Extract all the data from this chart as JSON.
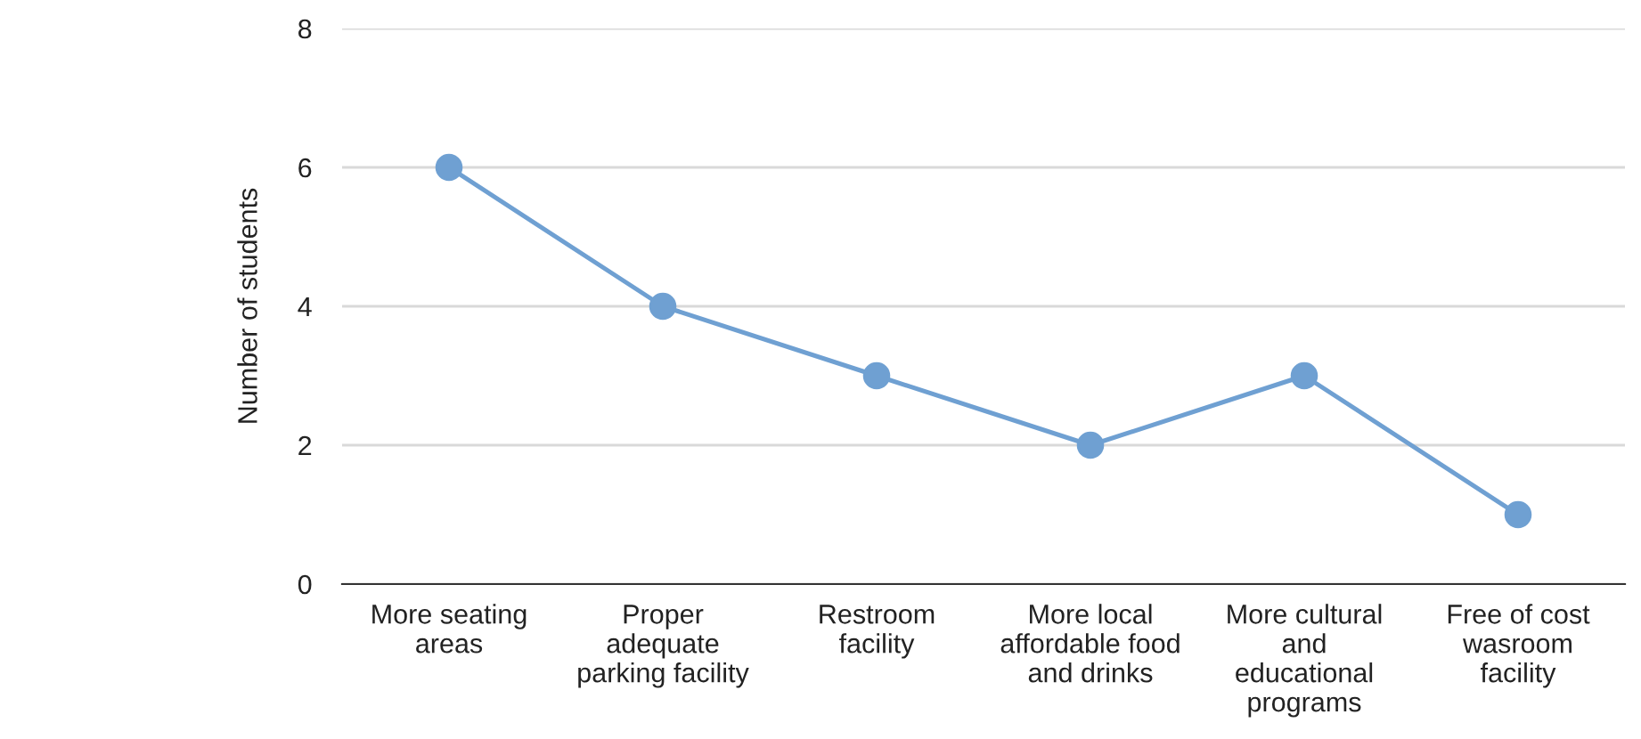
{
  "chart_data": {
    "type": "line",
    "ylabel": "Number of students",
    "categories": [
      "More seating\nareas",
      "Proper\nadequate\nparking facility",
      "Restroom\nfacility",
      "More local\naffordable food\nand drinks",
      "More cultural\nand\neducational\nprograms",
      "Free of cost\nwasroom\nfacility"
    ],
    "series": [
      {
        "color": "#6fa0d2",
        "values": [
          6,
          4,
          3,
          2,
          3,
          1
        ]
      }
    ],
    "ylim": [
      0,
      8
    ],
    "yticks": [
      0,
      2,
      4,
      6,
      8
    ],
    "grid": "y",
    "marker": "circle",
    "line_style": "solid",
    "legend": false
  }
}
